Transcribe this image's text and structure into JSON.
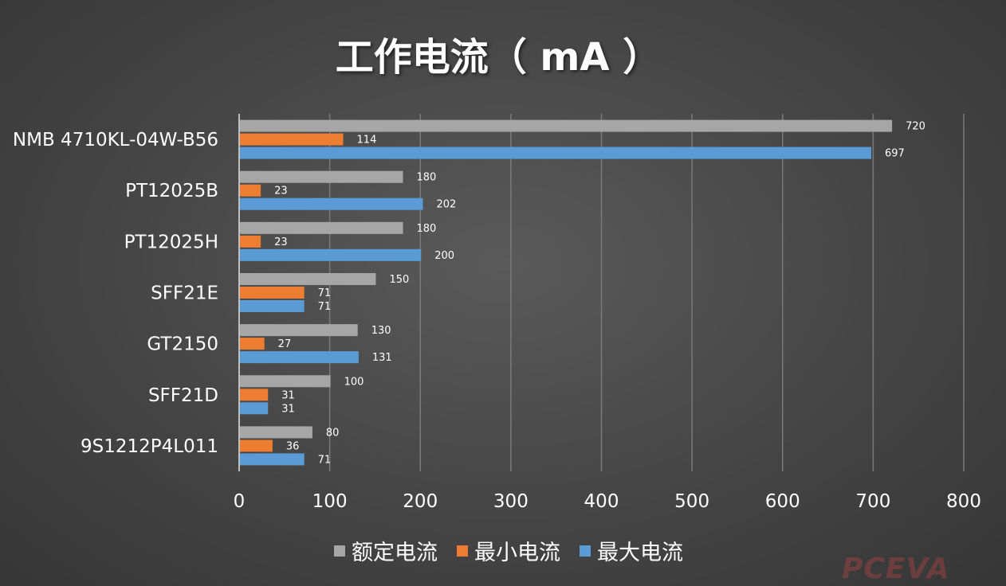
{
  "title": "工作电流（ mA ）",
  "colors": {
    "rated": "#a6a6a6",
    "min": "#ed7d31",
    "max": "#5b9bd5",
    "grid": "#7a7a7a",
    "axis": "#bfbfbf",
    "label": "#ffffff"
  },
  "legend": [
    {
      "label": "额定电流",
      "color": "#a6a6a6"
    },
    {
      "label": "最小电流",
      "color": "#ed7d31"
    },
    {
      "label": "最大电流",
      "color": "#5b9bd5"
    }
  ],
  "watermark": "PCEVA",
  "chart_data": {
    "type": "bar",
    "orientation": "horizontal",
    "title": "工作电流（ mA ）",
    "categories": [
      "NMB 4710KL-04W-B56",
      "PT12025B",
      "PT12025H",
      "SFF21E",
      "GT2150",
      "SFF21D",
      "9S1212P4L011"
    ],
    "series": [
      {
        "name": "额定电流",
        "values": [
          720,
          180,
          180,
          150,
          130,
          100,
          80
        ]
      },
      {
        "name": "最小电流",
        "values": [
          114,
          23,
          23,
          71,
          27,
          31,
          36
        ]
      },
      {
        "name": "最大电流",
        "values": [
          697,
          202,
          200,
          71,
          131,
          31,
          71
        ]
      }
    ],
    "xlim": [
      0,
      800
    ],
    "xticks": [
      0,
      100,
      200,
      300,
      400,
      500,
      600,
      700,
      800
    ],
    "grid": true,
    "legend_position": "bottom"
  }
}
